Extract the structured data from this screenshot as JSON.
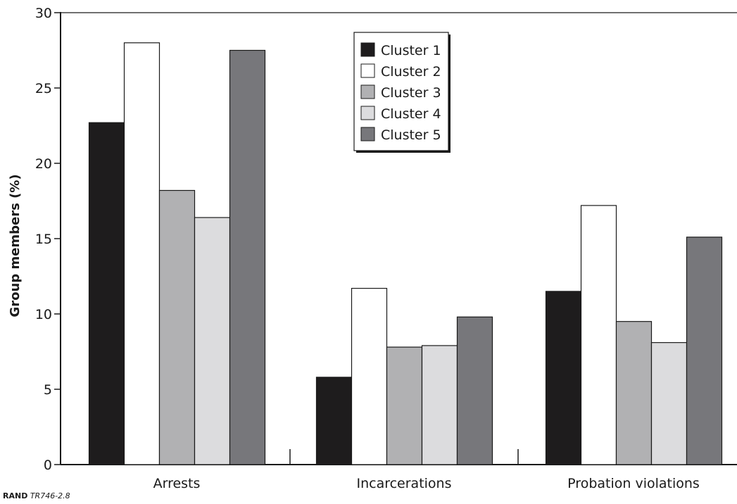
{
  "chart_data": {
    "type": "bar",
    "title": "",
    "xlabel": "",
    "ylabel": "Group members (%)",
    "ylim": [
      0,
      30
    ],
    "yticks": [
      0,
      5,
      10,
      15,
      20,
      25,
      30
    ],
    "categories": [
      "Arrests",
      "Incarcerations",
      "Probation violations"
    ],
    "series": [
      {
        "name": "Cluster 1",
        "color": "#1e1c1d",
        "values": [
          22.7,
          5.8,
          11.5
        ]
      },
      {
        "name": "Cluster 2",
        "color": "#ffffff",
        "values": [
          28.0,
          11.7,
          17.2
        ]
      },
      {
        "name": "Cluster 3",
        "color": "#b1b1b3",
        "values": [
          18.2,
          7.8,
          9.5
        ]
      },
      {
        "name": "Cluster 4",
        "color": "#dcdcde",
        "values": [
          16.4,
          7.9,
          8.1
        ]
      },
      {
        "name": "Cluster 5",
        "color": "#77777b",
        "values": [
          27.5,
          9.8,
          15.1
        ]
      }
    ],
    "legend_position": "top-center",
    "grid": false
  },
  "source": {
    "brand": "RAND",
    "code": "TR746-2.8"
  }
}
